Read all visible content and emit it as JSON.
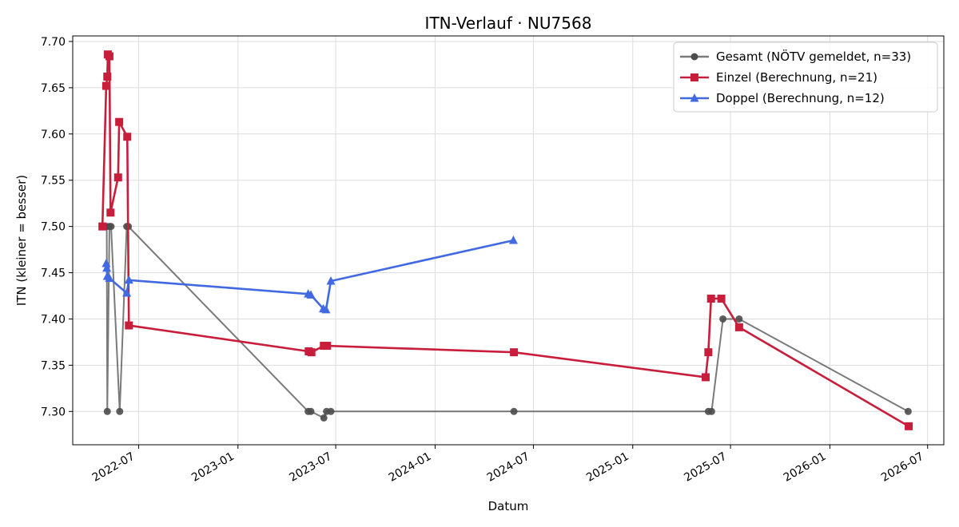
{
  "chart_data": {
    "type": "line",
    "title": "ITN-Verlauf · NU7568",
    "xlabel": "Datum",
    "ylabel": "ITN  (kleiner = besser)",
    "x_type": "date",
    "xlim": [
      "2022-03-01",
      "2026-07-31"
    ],
    "ylim": [
      7.264,
      7.706
    ],
    "x_ticks": [
      "2022-07-01",
      "2023-01-01",
      "2023-07-01",
      "2024-01-01",
      "2024-07-01",
      "2025-01-01",
      "2025-07-01",
      "2026-01-01",
      "2026-07-01"
    ],
    "x_tick_labels": [
      "2022-07",
      "2023-01",
      "2023-07",
      "2024-01",
      "2024-07",
      "2025-01",
      "2025-07",
      "2026-01",
      "2026-07"
    ],
    "y_ticks": [
      7.3,
      7.35,
      7.4,
      7.45,
      7.5,
      7.55,
      7.6,
      7.65,
      7.7
    ],
    "y_tick_labels": [
      "7.30",
      "7.35",
      "7.40",
      "7.45",
      "7.50",
      "7.55",
      "7.60",
      "7.65",
      "7.70"
    ],
    "grid": true,
    "legend_position": "top-right",
    "series": [
      {
        "name": "Gesamt (NÖTV gemeldet, n=33)",
        "color": "#4d4d4d",
        "marker": "circle",
        "points": [
          {
            "x": "2022-04-28",
            "y": 7.5
          },
          {
            "x": "2022-05-03",
            "y": 7.5
          },
          {
            "x": "2022-05-04",
            "y": 7.3
          },
          {
            "x": "2022-05-08",
            "y": 7.5
          },
          {
            "x": "2022-05-11",
            "y": 7.5
          },
          {
            "x": "2022-05-27",
            "y": 7.3
          },
          {
            "x": "2022-06-09",
            "y": 7.5
          },
          {
            "x": "2022-06-12",
            "y": 7.5
          },
          {
            "x": "2023-05-11",
            "y": 7.3
          },
          {
            "x": "2023-05-16",
            "y": 7.3
          },
          {
            "x": "2023-06-09",
            "y": 7.293
          },
          {
            "x": "2023-06-14",
            "y": 7.3
          },
          {
            "x": "2023-06-22",
            "y": 7.3
          },
          {
            "x": "2024-05-26",
            "y": 7.3
          },
          {
            "x": "2025-05-21",
            "y": 7.3
          },
          {
            "x": "2025-05-27",
            "y": 7.3
          },
          {
            "x": "2025-06-17",
            "y": 7.4
          },
          {
            "x": "2025-07-17",
            "y": 7.4
          },
          {
            "x": "2026-05-26",
            "y": 7.3
          }
        ]
      },
      {
        "name": "Einzel (Berechnung, n=21)",
        "color": "#c81e3c",
        "marker": "square",
        "points": [
          {
            "x": "2022-04-25",
            "y": 7.5
          },
          {
            "x": "2022-05-02",
            "y": 7.652
          },
          {
            "x": "2022-05-04",
            "y": 7.662
          },
          {
            "x": "2022-05-05",
            "y": 7.686
          },
          {
            "x": "2022-05-08",
            "y": 7.684
          },
          {
            "x": "2022-05-10",
            "y": 7.515
          },
          {
            "x": "2022-05-24",
            "y": 7.553
          },
          {
            "x": "2022-05-26",
            "y": 7.613
          },
          {
            "x": "2022-06-10",
            "y": 7.597
          },
          {
            "x": "2022-06-13",
            "y": 7.393
          },
          {
            "x": "2023-05-12",
            "y": 7.365
          },
          {
            "x": "2023-05-17",
            "y": 7.364
          },
          {
            "x": "2023-06-09",
            "y": 7.371
          },
          {
            "x": "2023-06-15",
            "y": 7.371
          },
          {
            "x": "2024-05-26",
            "y": 7.364
          },
          {
            "x": "2025-05-16",
            "y": 7.337
          },
          {
            "x": "2025-05-21",
            "y": 7.364
          },
          {
            "x": "2025-05-26",
            "y": 7.422
          },
          {
            "x": "2025-06-14",
            "y": 7.422
          },
          {
            "x": "2025-07-17",
            "y": 7.391
          },
          {
            "x": "2026-05-27",
            "y": 7.284
          }
        ]
      },
      {
        "name": "Doppel (Berechnung, n=12)",
        "color": "#4169e1",
        "marker": "triangle",
        "points": [
          {
            "x": "2022-05-02",
            "y": 7.46
          },
          {
            "x": "2022-05-03",
            "y": 7.455
          },
          {
            "x": "2022-05-04",
            "y": 7.446
          },
          {
            "x": "2022-05-08",
            "y": 7.444
          },
          {
            "x": "2022-06-09",
            "y": 7.428
          },
          {
            "x": "2022-06-13",
            "y": 7.442
          },
          {
            "x": "2023-05-11",
            "y": 7.427
          },
          {
            "x": "2023-05-16",
            "y": 7.426
          },
          {
            "x": "2023-06-08",
            "y": 7.411
          },
          {
            "x": "2023-06-13",
            "y": 7.41
          },
          {
            "x": "2023-06-22",
            "y": 7.441
          },
          {
            "x": "2024-05-25",
            "y": 7.485
          }
        ]
      }
    ]
  }
}
